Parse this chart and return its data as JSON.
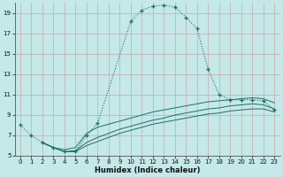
{
  "xlabel": "Humidex (Indice chaleur)",
  "bg_color": "#c5e8e8",
  "grid_color": "#c8a8a8",
  "line_color": "#1a7068",
  "xlim": [
    -0.5,
    23.5
  ],
  "ylim": [
    5,
    20
  ],
  "yticks": [
    5,
    7,
    9,
    11,
    13,
    15,
    17,
    19
  ],
  "xticks": [
    0,
    1,
    2,
    3,
    4,
    5,
    6,
    7,
    8,
    9,
    10,
    11,
    12,
    13,
    14,
    15,
    16,
    17,
    18,
    19,
    20,
    21,
    22,
    23
  ],
  "curve1_x": [
    0,
    1,
    2,
    3,
    4,
    5,
    6,
    7,
    10,
    11,
    12,
    13,
    14,
    15,
    16,
    17,
    18,
    19,
    20,
    21,
    22,
    23
  ],
  "curve1_y": [
    8.0,
    7.0,
    6.3,
    5.8,
    5.4,
    5.4,
    7.0,
    8.2,
    18.2,
    19.3,
    19.7,
    19.8,
    19.6,
    18.6,
    17.5,
    13.5,
    11.0,
    10.5,
    10.5,
    10.5,
    10.4,
    9.5
  ],
  "curve2_x": [
    2,
    3,
    4,
    5,
    6,
    7,
    8,
    9,
    10,
    11,
    12,
    13,
    14,
    15,
    16,
    17,
    18,
    19,
    20,
    21,
    22,
    23
  ],
  "curve2_y": [
    6.3,
    5.8,
    5.4,
    5.4,
    6.0,
    6.4,
    6.8,
    7.2,
    7.5,
    7.8,
    8.1,
    8.3,
    8.5,
    8.7,
    8.9,
    9.1,
    9.2,
    9.4,
    9.5,
    9.6,
    9.6,
    9.3
  ],
  "curve3_x": [
    2,
    3,
    4,
    5,
    6,
    7,
    8,
    9,
    10,
    11,
    12,
    13,
    14,
    15,
    16,
    17,
    18,
    19,
    20,
    21,
    22,
    23
  ],
  "curve3_y": [
    6.3,
    5.8,
    5.4,
    5.5,
    6.3,
    6.8,
    7.2,
    7.6,
    7.9,
    8.2,
    8.5,
    8.7,
    9.0,
    9.2,
    9.4,
    9.6,
    9.7,
    9.9,
    10.0,
    10.1,
    10.0,
    9.6
  ],
  "curve4_x": [
    2,
    3,
    4,
    5,
    6,
    7,
    8,
    9,
    10,
    11,
    12,
    13,
    14,
    15,
    16,
    17,
    18,
    19,
    20,
    21,
    22,
    23
  ],
  "curve4_y": [
    6.3,
    5.8,
    5.6,
    5.8,
    7.2,
    7.8,
    8.1,
    8.4,
    8.7,
    9.0,
    9.3,
    9.5,
    9.7,
    9.9,
    10.1,
    10.3,
    10.4,
    10.5,
    10.6,
    10.7,
    10.6,
    10.2
  ]
}
